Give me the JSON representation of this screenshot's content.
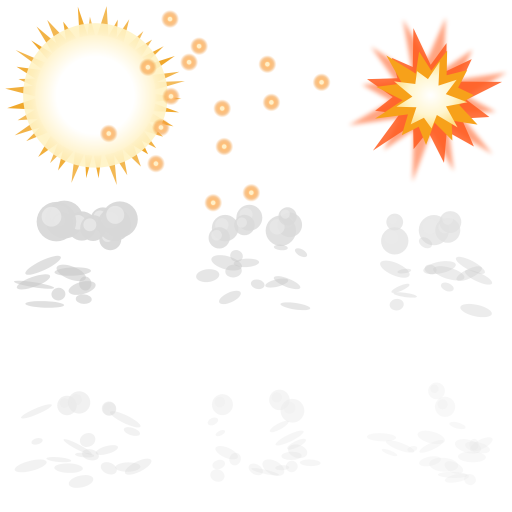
{
  "sheet": {
    "columns": 3,
    "rows": 3,
    "background": "#ffffff",
    "frames": [
      {
        "name": "flash-burst-frame",
        "kind": "burst",
        "colors": {
          "core": "#ffffff",
          "glow": "#fff3c4",
          "ray": "#f0a72a"
        }
      },
      {
        "name": "sparks-frame",
        "kind": "sparks",
        "spark_count": 16,
        "colors": {
          "spark": "#f39a3c",
          "core": "#fff0c8"
        }
      },
      {
        "name": "explosion-frame",
        "kind": "explosion",
        "colors": {
          "outer": "#ff5a1f",
          "mid": "#f7a11a",
          "inner": "#fff6d0"
        }
      },
      {
        "name": "smoke-frame-1",
        "kind": "smoke",
        "dissipation": 0.0,
        "colors": {
          "smoke": "#d8d8d8",
          "shade": "#c6c6c6"
        }
      },
      {
        "name": "smoke-frame-2",
        "kind": "smoke",
        "dissipation": 0.3,
        "colors": {
          "smoke": "#dadada",
          "shade": "#c8c8c8"
        }
      },
      {
        "name": "smoke-frame-3",
        "kind": "smoke",
        "dissipation": 0.5,
        "colors": {
          "smoke": "#e0e0e0",
          "shade": "#cfcfcf"
        }
      },
      {
        "name": "smoke-frame-4",
        "kind": "smoke",
        "dissipation": 0.75,
        "colors": {
          "smoke": "#e6e6e6",
          "shade": "#d6d6d6"
        }
      },
      {
        "name": "smoke-frame-5",
        "kind": "smoke",
        "dissipation": 0.9,
        "colors": {
          "smoke": "#ececec",
          "shade": "#dedede"
        }
      },
      {
        "name": "smoke-frame-6",
        "kind": "smoke",
        "dissipation": 1.0,
        "colors": {
          "smoke": "#f0f0f0",
          "shade": "#e4e4e4"
        }
      }
    ]
  }
}
